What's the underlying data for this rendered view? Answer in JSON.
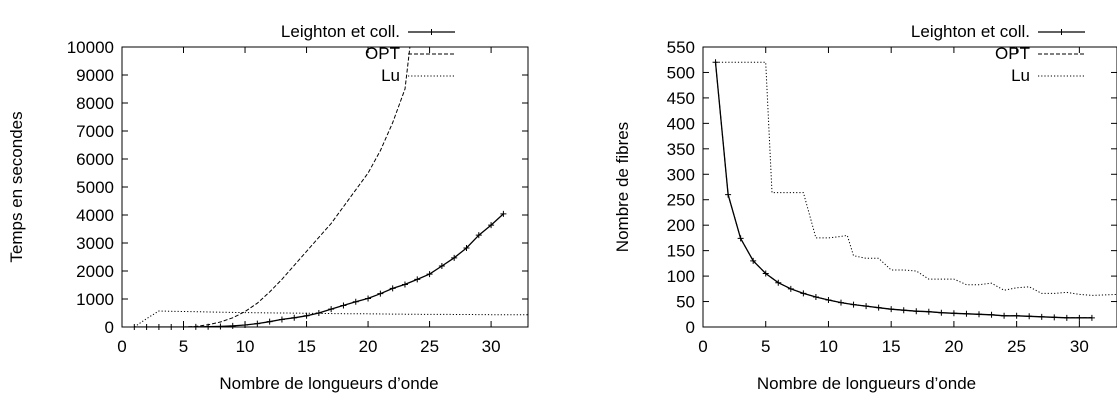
{
  "chart_data": [
    {
      "type": "line",
      "xlabel": "Nombre de longueurs d’onde",
      "ylabel": "Temps en secondes",
      "xlim": [
        0,
        33
      ],
      "ylim": [
        0,
        10000
      ],
      "xticks": [
        "0",
        "5",
        "10",
        "15",
        "20",
        "25",
        "30"
      ],
      "yticks": [
        "0",
        "1000",
        "2000",
        "3000",
        "4000",
        "5000",
        "6000",
        "7000",
        "8000",
        "9000",
        "10000"
      ],
      "grid": false,
      "legend_position": "top-right",
      "series": [
        {
          "name": "Leighton et coll.",
          "style": "solid-plus-markers",
          "x": [
            1,
            2,
            3,
            4,
            5,
            6,
            7,
            8,
            9,
            10,
            11,
            12,
            13,
            14,
            15,
            16,
            17,
            18,
            19,
            20,
            21,
            22,
            23,
            24,
            25,
            26,
            27,
            28,
            29,
            30,
            31
          ],
          "y": [
            0,
            0,
            0,
            0,
            0,
            5,
            10,
            20,
            40,
            70,
            120,
            190,
            270,
            330,
            400,
            500,
            640,
            770,
            900,
            1020,
            1190,
            1380,
            1520,
            1700,
            1890,
            2180,
            2470,
            2820,
            3280,
            3640,
            4040
          ]
        },
        {
          "name": "OPT",
          "style": "dashed",
          "x": [
            1,
            2,
            3,
            4,
            5,
            6,
            7,
            8,
            9,
            10,
            11,
            12,
            13,
            14,
            15,
            16,
            17,
            18,
            19,
            20,
            21,
            22,
            23,
            23.4
          ],
          "y": [
            0,
            0,
            0,
            0,
            0,
            20,
            80,
            180,
            330,
            550,
            850,
            1250,
            1700,
            2200,
            2700,
            3200,
            3700,
            4300,
            4900,
            5500,
            6300,
            7300,
            8500,
            10000
          ]
        },
        {
          "name": "Lu",
          "style": "dotted",
          "x": [
            1,
            2,
            3,
            4,
            5,
            6,
            8,
            10,
            12,
            14,
            16,
            18,
            20,
            22,
            24,
            26,
            28,
            30,
            31,
            33
          ],
          "y": [
            0,
            300,
            570,
            560,
            555,
            545,
            530,
            515,
            505,
            495,
            485,
            475,
            470,
            460,
            455,
            450,
            445,
            440,
            438,
            435
          ]
        }
      ]
    },
    {
      "type": "line",
      "xlabel": "Nombre de longueurs d’onde",
      "ylabel": "Nombre de fibres",
      "xlim": [
        0,
        33
      ],
      "ylim": [
        0,
        550
      ],
      "xticks": [
        "0",
        "5",
        "10",
        "15",
        "20",
        "25",
        "30"
      ],
      "yticks": [
        "0",
        "50",
        "100",
        "150",
        "200",
        "250",
        "300",
        "350",
        "400",
        "450",
        "500",
        "550"
      ],
      "grid": false,
      "legend_position": "top-right",
      "series": [
        {
          "name": "Leighton et coll.",
          "style": "solid-plus-markers",
          "x": [
            1,
            2,
            3,
            4,
            5,
            6,
            7,
            8,
            9,
            10,
            11,
            12,
            13,
            14,
            15,
            16,
            17,
            18,
            19,
            20,
            21,
            22,
            23,
            24,
            25,
            26,
            27,
            28,
            29,
            30,
            31
          ],
          "y": [
            520,
            260,
            174,
            130,
            105,
            87,
            75,
            66,
            59,
            53,
            48,
            44,
            41,
            38,
            35,
            33,
            31,
            30,
            28,
            27,
            26,
            25,
            24,
            22,
            22,
            21,
            20,
            19,
            18,
            18,
            18
          ]
        },
        {
          "name": "OPT",
          "style": "dashed",
          "x": [
            1,
            2,
            3,
            4,
            5,
            6,
            7,
            8,
            9,
            10,
            11,
            12,
            13,
            14,
            15,
            16,
            17,
            18,
            19,
            20,
            21,
            22,
            23,
            24,
            25,
            26,
            27,
            28,
            29,
            30,
            31
          ],
          "y": [
            520,
            260,
            174,
            130,
            105,
            87,
            75,
            66,
            59,
            53,
            48,
            44,
            41,
            38,
            35,
            33,
            31,
            30,
            28,
            27,
            26,
            25,
            24,
            22,
            22,
            21,
            20,
            19,
            18,
            18,
            18
          ]
        },
        {
          "name": "Lu",
          "style": "dotted",
          "x": [
            1,
            2,
            3,
            4,
            5,
            5.5,
            6,
            7,
            8,
            9,
            10,
            11,
            11.5,
            12,
            13,
            14,
            15,
            16,
            17,
            18,
            19,
            20,
            21,
            22,
            23,
            24,
            25,
            26,
            27,
            28,
            29,
            30,
            31,
            32,
            33
          ],
          "y": [
            520,
            520,
            520,
            520,
            520,
            264,
            264,
            264,
            264,
            175,
            175,
            178,
            180,
            140,
            135,
            135,
            112,
            112,
            110,
            94,
            94,
            94,
            83,
            83,
            86,
            72,
            77,
            79,
            66,
            66,
            68,
            64,
            62,
            63,
            64
          ]
        }
      ]
    }
  ]
}
